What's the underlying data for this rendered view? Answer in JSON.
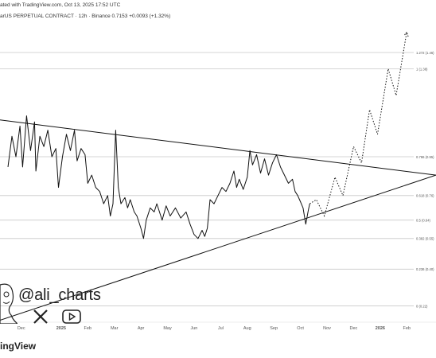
{
  "header": {
    "published": "ated with TradingView.com, Oct 13, 2025 17:52 UTC",
    "symbol_line": "arUS PERPETUAL CONTRACT · 12h · Binance  0.7153  +0.0093 (+1.32%)"
  },
  "watermark": {
    "handle": "@ali_charts",
    "brand": "ingView"
  },
  "icons": [
    "x-logo-icon",
    "youtube-logo-icon",
    "caricature-face-icon"
  ],
  "colors": {
    "line": "#111111",
    "grid": "#c8c8c8",
    "projection": "#111111",
    "axis_text": "#555555"
  },
  "chart_data": {
    "type": "line",
    "title": "",
    "xlabel": "",
    "ylabel": "",
    "x_ticks": [
      {
        "label": "Dec",
        "t": 0.5
      },
      {
        "label": "2025",
        "t": 2
      },
      {
        "label": "Feb",
        "t": 3
      },
      {
        "label": "Mar",
        "t": 4
      },
      {
        "label": "Apr",
        "t": 5
      },
      {
        "label": "May",
        "t": 6
      },
      {
        "label": "Jun",
        "t": 7
      },
      {
        "label": "Jul",
        "t": 8
      },
      {
        "label": "Aug",
        "t": 9
      },
      {
        "label": "Sep",
        "t": 10
      },
      {
        "label": "Oct",
        "t": 11
      },
      {
        "label": "Nov",
        "t": 12
      },
      {
        "label": "Dec",
        "t": 13
      },
      {
        "label": "2026",
        "t": 14
      },
      {
        "label": "Feb",
        "t": 15
      }
    ],
    "y_levels": [
      {
        "label": "1.272 (1.46)",
        "value": 1.46
      },
      {
        "label": "1 (1.38)",
        "value": 1.38
      },
      {
        "label": "0.786 (0.95)",
        "value": 0.95
      },
      {
        "label": "0.618 (0.76)",
        "value": 0.76
      },
      {
        "label": "0.5 (0.64)",
        "value": 0.64
      },
      {
        "label": "0.382 (0.55)",
        "value": 0.55
      },
      {
        "label": "0.236 (0.40)",
        "value": 0.4
      },
      {
        "label": "0 (0.22)",
        "value": 0.22
      }
    ],
    "series": [
      {
        "points": [
          [
            0.0,
            0.9
          ],
          [
            0.15,
            1.05
          ],
          [
            0.3,
            0.95
          ],
          [
            0.45,
            1.1
          ],
          [
            0.55,
            0.9
          ],
          [
            0.7,
            1.15
          ],
          [
            0.85,
            0.98
          ],
          [
            1.0,
            1.12
          ],
          [
            1.05,
            0.88
          ],
          [
            1.2,
            1.05
          ],
          [
            1.35,
            1.0
          ],
          [
            1.5,
            1.08
          ],
          [
            1.65,
            0.95
          ],
          [
            1.8,
            0.99
          ],
          [
            1.9,
            0.8
          ],
          [
            2.05,
            0.95
          ],
          [
            2.2,
            1.06
          ],
          [
            2.35,
            0.98
          ],
          [
            2.5,
            1.08
          ],
          [
            2.6,
            0.93
          ],
          [
            2.75,
            0.99
          ],
          [
            2.9,
            0.96
          ],
          [
            3.0,
            0.82
          ],
          [
            3.15,
            0.86
          ],
          [
            3.3,
            0.8
          ],
          [
            3.45,
            0.78
          ],
          [
            3.6,
            0.72
          ],
          [
            3.75,
            0.76
          ],
          [
            3.85,
            0.66
          ],
          [
            3.95,
            0.72
          ],
          [
            4.05,
            1.08
          ],
          [
            4.15,
            0.8
          ],
          [
            4.25,
            0.72
          ],
          [
            4.4,
            0.75
          ],
          [
            4.5,
            0.7
          ],
          [
            4.6,
            0.74
          ],
          [
            4.75,
            0.68
          ],
          [
            4.85,
            0.66
          ],
          [
            5.0,
            0.6
          ],
          [
            5.1,
            0.55
          ],
          [
            5.2,
            0.64
          ],
          [
            5.35,
            0.7
          ],
          [
            5.5,
            0.68
          ],
          [
            5.6,
            0.72
          ],
          [
            5.8,
            0.64
          ],
          [
            5.95,
            0.71
          ],
          [
            6.1,
            0.66
          ],
          [
            6.3,
            0.7
          ],
          [
            6.5,
            0.65
          ],
          [
            6.7,
            0.68
          ],
          [
            6.85,
            0.62
          ],
          [
            7.0,
            0.57
          ],
          [
            7.15,
            0.55
          ],
          [
            7.3,
            0.59
          ],
          [
            7.4,
            0.56
          ],
          [
            7.5,
            0.6
          ],
          [
            7.6,
            0.74
          ],
          [
            7.75,
            0.72
          ],
          [
            7.9,
            0.76
          ],
          [
            8.05,
            0.8
          ],
          [
            8.2,
            0.78
          ],
          [
            8.35,
            0.82
          ],
          [
            8.5,
            0.88
          ],
          [
            8.6,
            0.8
          ],
          [
            8.7,
            0.84
          ],
          [
            8.85,
            0.79
          ],
          [
            9.0,
            0.85
          ],
          [
            9.1,
            0.98
          ],
          [
            9.2,
            0.91
          ],
          [
            9.35,
            0.96
          ],
          [
            9.5,
            0.87
          ],
          [
            9.65,
            0.94
          ],
          [
            9.8,
            0.86
          ],
          [
            9.95,
            0.92
          ],
          [
            10.1,
            0.96
          ],
          [
            10.25,
            0.9
          ],
          [
            10.4,
            0.86
          ],
          [
            10.55,
            0.82
          ],
          [
            10.7,
            0.84
          ],
          [
            10.8,
            0.78
          ],
          [
            10.9,
            0.76
          ],
          [
            11.0,
            0.73
          ],
          [
            11.1,
            0.7
          ],
          [
            11.2,
            0.62
          ],
          [
            11.3,
            0.69
          ],
          [
            11.35,
            0.72
          ]
        ]
      }
    ],
    "projection": [
      [
        11.35,
        0.72
      ],
      [
        11.6,
        0.74
      ],
      [
        11.9,
        0.66
      ],
      [
        12.3,
        0.85
      ],
      [
        12.6,
        0.76
      ],
      [
        13.0,
        1.0
      ],
      [
        13.3,
        0.92
      ],
      [
        13.6,
        1.18
      ],
      [
        13.9,
        1.06
      ],
      [
        14.3,
        1.38
      ],
      [
        14.6,
        1.25
      ],
      [
        15.0,
        1.56
      ]
    ],
    "trendlines": [
      {
        "name": "upper",
        "from": [
          -0.3,
          1.13
        ],
        "to": [
          16.1,
          0.86
        ]
      },
      {
        "name": "lower",
        "from": [
          -0.3,
          0.15
        ],
        "to": [
          16.1,
          0.86
        ]
      }
    ],
    "x_range": [
      -0.3,
      16.1
    ],
    "y_range": [
      0.16,
      1.6
    ],
    "grid": "horizontal"
  }
}
